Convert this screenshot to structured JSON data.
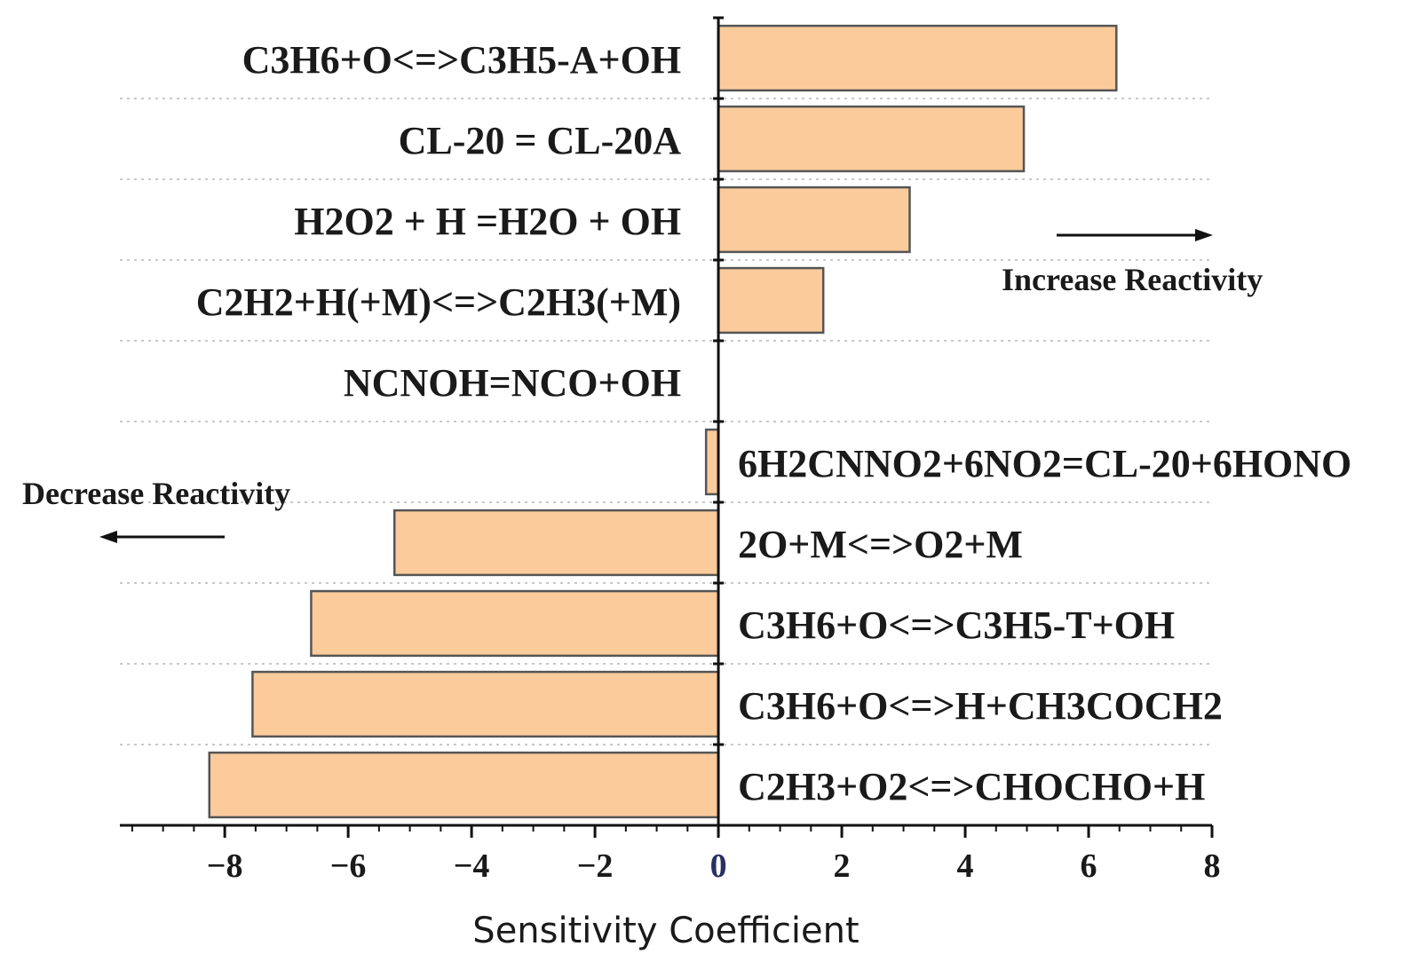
{
  "chart_data": {
    "type": "bar",
    "orientation": "horizontal",
    "title": "",
    "xlabel": "Sensitivity Coefficient",
    "ylabel": "",
    "xlim": [
      -9.7,
      8
    ],
    "xticks": [
      -8,
      -6,
      -4,
      -2,
      0,
      2,
      4,
      6,
      8
    ],
    "xtick_labels": [
      "−8",
      "−6",
      "−4",
      "−2",
      "0",
      "2",
      "4",
      "6",
      "8"
    ],
    "grid": true,
    "bar_color": "#FCCB9C",
    "bar_edge_color": "#555555",
    "categories": [
      "C3H6+O<=>C3H5-A+OH",
      "CL-20 = CL-20A",
      "H2O2 + H =H2O + OH",
      "C2H2+H(+M)<=>C2H3(+M)",
      "NCNOH=NCO+OH",
      "6H2CNNO2+6NO2=CL-20+6HONO",
      "2O+M<=>O2+M",
      "C3H6+O<=>C3H5-T+OH",
      "C3H6+O<=>H+CH3COCH2",
      "C2H3+O2<=>CHOCHO+H"
    ],
    "values": [
      6.45,
      4.95,
      3.1,
      1.7,
      0.0,
      -0.2,
      -5.25,
      -6.6,
      -7.55,
      -8.25
    ],
    "annotations": [
      {
        "text": "Increase Reactivity",
        "arrow": "right"
      },
      {
        "text": "Decrease Reactivity",
        "arrow": "left"
      }
    ]
  }
}
